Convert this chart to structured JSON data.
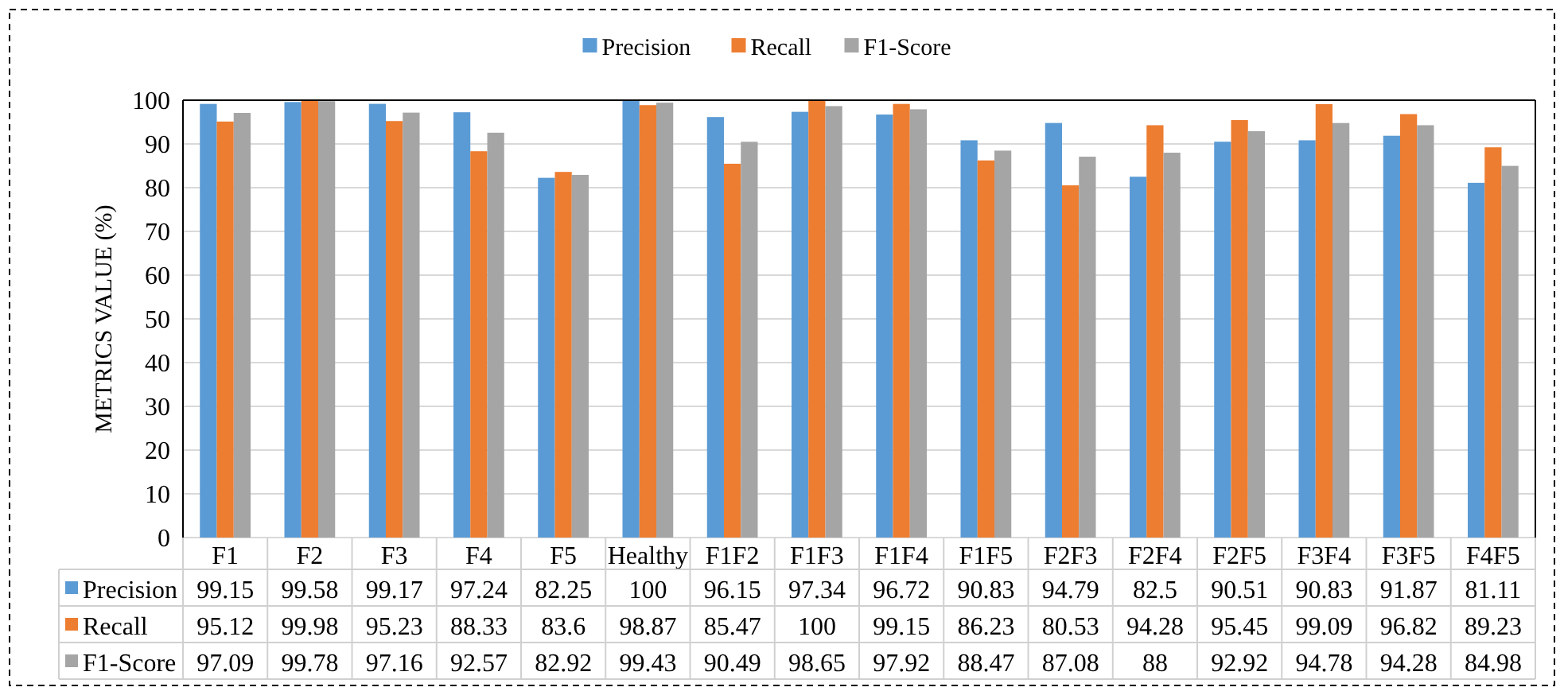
{
  "chart_data": {
    "type": "bar",
    "ylabel": "METRICS VALUE (%)",
    "categories": [
      "F1",
      "F2",
      "F3",
      "F4",
      "F5",
      "Healthy",
      "F1F2",
      "F1F3",
      "F1F4",
      "F1F5",
      "F2F3",
      "F2F4",
      "F2F5",
      "F3F4",
      "F3F5",
      "F4F5"
    ],
    "series": [
      {
        "name": "Precision",
        "color": "#5b9bd5",
        "values": [
          99.15,
          99.58,
          99.17,
          97.24,
          82.25,
          100,
          96.15,
          97.34,
          96.72,
          90.83,
          94.79,
          82.5,
          90.51,
          90.83,
          91.87,
          81.11
        ]
      },
      {
        "name": "Recall",
        "color": "#ed7d31",
        "values": [
          95.12,
          99.98,
          95.23,
          88.33,
          83.6,
          98.87,
          85.47,
          100,
          99.15,
          86.23,
          80.53,
          94.28,
          95.45,
          99.09,
          96.82,
          89.23
        ]
      },
      {
        "name": "F1-Score",
        "color": "#a5a5a5",
        "values": [
          97.09,
          99.78,
          97.16,
          92.57,
          82.92,
          99.43,
          90.49,
          98.65,
          97.92,
          88.47,
          87.08,
          88,
          92.92,
          94.78,
          94.28,
          84.98
        ]
      }
    ],
    "ylim": [
      0,
      100
    ],
    "yticks": [
      0,
      10,
      20,
      30,
      40,
      50,
      60,
      70,
      80,
      90,
      100
    ],
    "grid": "y",
    "legend": "top",
    "data_labels": true
  }
}
